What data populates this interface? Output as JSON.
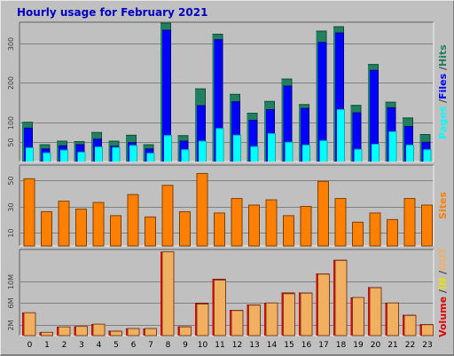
{
  "chart_data": {
    "title": "Hourly usage for February 2021",
    "categories": [
      "0",
      "1",
      "2",
      "3",
      "4",
      "5",
      "6",
      "7",
      "8",
      "9",
      "10",
      "11",
      "12",
      "13",
      "14",
      "15",
      "16",
      "17",
      "18",
      "19",
      "20",
      "21",
      "22",
      "23"
    ],
    "colors": {
      "hits": "#208060",
      "files": "#0000ff",
      "pages": "#00ffff",
      "sites": "#ff8000",
      "volume": "#e00000",
      "kbin": "#e8e000",
      "kbout": "#f0b060",
      "panel": "#c0c0c0",
      "grid": "#808080"
    },
    "charts": [
      {
        "type": "bar",
        "panel": "hits-files-pages",
        "ylim": [
          0,
          350
        ],
        "yticks": [
          50,
          100,
          200,
          300
        ],
        "ylabel": {
          "pages": "Pages",
          "sep1": " /",
          "files": "Files",
          "sep2": " /",
          "hits": "Hits"
        },
        "series": [
          {
            "name": "Hits",
            "values": [
              101,
              44,
              53,
              52,
              75,
              53,
              68,
              44,
              353,
              67,
              186,
              325,
              172,
              124,
              154,
              211,
              146,
              333,
              344,
              144,
              248,
              152,
              112,
              70
            ]
          },
          {
            "name": "Files",
            "values": [
              86,
              33,
              41,
              44,
              58,
              40,
              49,
              33,
              335,
              53,
              143,
              311,
              153,
              106,
              133,
              193,
              136,
              304,
              328,
              125,
              233,
              138,
              90,
              50
            ]
          },
          {
            "name": "Pages",
            "values": [
              36,
              23,
              30,
              25,
              38,
              37,
              42,
              22,
              67,
              31,
              53,
              85,
              68,
              39,
              72,
              50,
              43,
              54,
              133,
              32,
              45,
              77,
              43,
              31
            ]
          }
        ]
      },
      {
        "type": "bar",
        "panel": "sites",
        "ylim": [
          0,
          60
        ],
        "yticks": [
          10,
          30,
          50
        ],
        "ylabel": {
          "sites": "Sites"
        },
        "series": [
          {
            "name": "Sites",
            "values": [
              51,
              26,
              34,
              28,
              33,
              23,
              39,
              22,
              46,
              26,
              55,
              25,
              36,
              31,
              35,
              23,
              30,
              49,
              36,
              18,
              25,
              20,
              36,
              31
            ]
          }
        ]
      },
      {
        "type": "bar",
        "panel": "volume",
        "ylim": [
          0,
          15.5
        ],
        "yticks": [
          2,
          6,
          10
        ],
        "ytick_labels": [
          "2M",
          "6M",
          "10M"
        ],
        "ylabel": {
          "volume": "Volume",
          "sep1": " /",
          "in": "IN",
          "sep2": " /",
          "out": "OUT"
        },
        "series": [
          {
            "name": "Volume",
            "values": [
              4.2,
              0.6,
              1.6,
              1.7,
              2.1,
              0.9,
              1.3,
              1.3,
              15.4,
              1.7,
              6.0,
              10.4,
              4.7,
              5.7,
              6.0,
              7.9,
              7.9,
              11.4,
              13.9,
              7.0,
              8.9,
              6.0,
              3.8,
              2.1
            ]
          },
          {
            "name": "KB Out",
            "values": [
              4.2,
              0.6,
              1.6,
              1.7,
              2.1,
              0.8,
              1.3,
              1.3,
              15.4,
              1.6,
              5.8,
              10.2,
              4.6,
              5.6,
              6.0,
              7.7,
              7.8,
              11.3,
              13.8,
              7.0,
              8.8,
              6.0,
              3.7,
              2.0
            ]
          }
        ]
      }
    ]
  }
}
